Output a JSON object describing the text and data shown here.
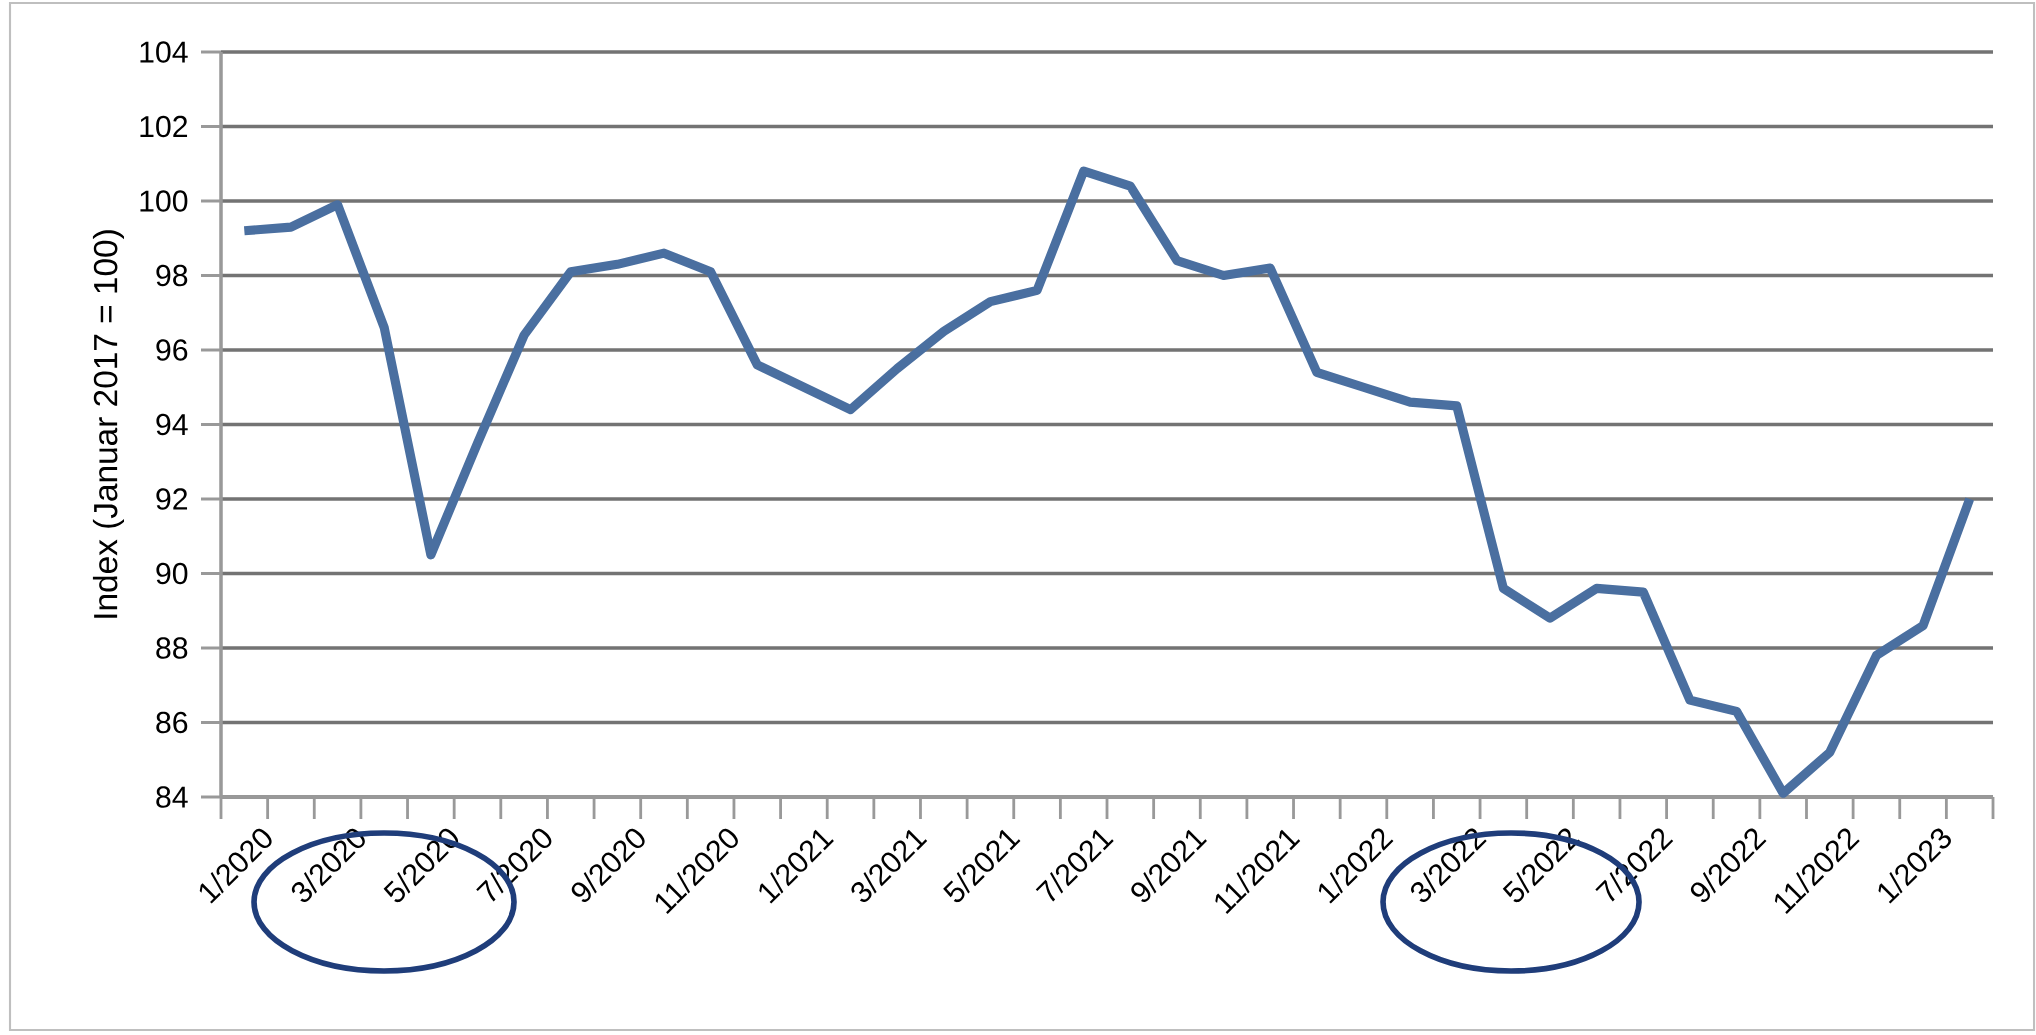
{
  "chart_data": {
    "type": "line",
    "ylabel": "Index (Januar 2017 = 100)",
    "categories": [
      "1/2020",
      null,
      "3/2020",
      null,
      "5/2020",
      null,
      "7/2020",
      null,
      "9/2020",
      null,
      "11/2020",
      null,
      "1/2021",
      null,
      "3/2021",
      null,
      "5/2021",
      null,
      "7/2021",
      null,
      "9/2021",
      null,
      "11/2021",
      null,
      "1/2022",
      null,
      "3/2022",
      null,
      "5/2022",
      null,
      "7/2022",
      null,
      "9/2022",
      null,
      "11/2022",
      null,
      "1/2023",
      null
    ],
    "series": [
      {
        "color": "#4a6fa0",
        "values": [
          99.2,
          99.3,
          99.9,
          96.6,
          90.5,
          93.5,
          96.4,
          98.1,
          98.3,
          98.6,
          98.1,
          95.6,
          95.0,
          94.4,
          95.5,
          96.5,
          97.3,
          97.6,
          100.8,
          100.4,
          98.4,
          98.0,
          98.2,
          95.4,
          95.0,
          94.6,
          94.5,
          89.6,
          88.8,
          89.6,
          89.5,
          86.6,
          86.3,
          84.1,
          85.2,
          87.8,
          88.6,
          92.0
        ]
      }
    ],
    "ylim": [
      84,
      104
    ],
    "yticks": [
      84,
      86,
      88,
      90,
      92,
      94,
      96,
      98,
      100,
      102,
      104
    ],
    "grid": "y",
    "legend": false,
    "marker": "none",
    "line_style": "solid"
  }
}
